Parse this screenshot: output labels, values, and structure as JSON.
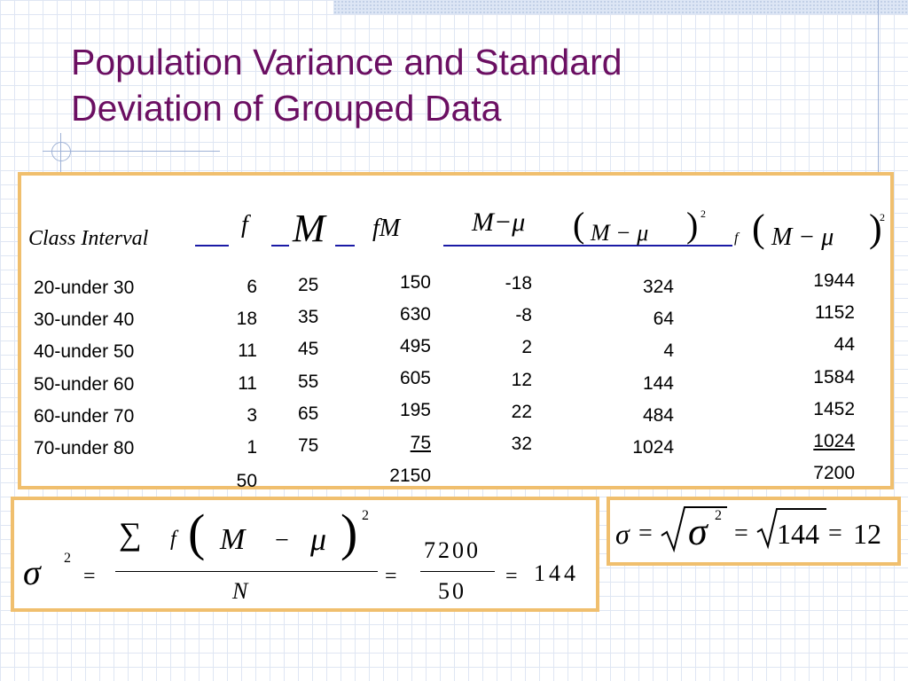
{
  "slide": {
    "title_line1": "Population Variance and Standard",
    "title_line2": "Deviation of Grouped Data"
  },
  "table": {
    "headers": {
      "class_interval": "Class  Interval",
      "f": "f",
      "M": "M",
      "fM": "fM",
      "M_minus_mu": "M−μ",
      "M_minus_mu_sq": "M  −  μ",
      "f_M_minus_mu_sq": "M  −  μ",
      "f_small": "f",
      "exp2": "2"
    },
    "class_intervals": [
      "20-under 30",
      "30-under 40",
      "40-under 50",
      "50-under 60",
      "60-under 70",
      "70-under 80"
    ],
    "f": [
      "6",
      "18",
      "11",
      "11",
      "3",
      "1"
    ],
    "f_total": "50",
    "M": [
      "25",
      "35",
      "45",
      "55",
      "65",
      "75"
    ],
    "fM": [
      "150",
      "630",
      "495",
      "605",
      "195",
      "75"
    ],
    "fM_total": "2150",
    "M_minus_mu": [
      "-18",
      "-8",
      "2",
      "12",
      "22",
      "32"
    ],
    "M_minus_mu_sq": [
      "324",
      "64",
      "4",
      "144",
      "484",
      "1024"
    ],
    "f_M_minus_mu_sq": [
      "1944",
      "1152",
      "44",
      "1584",
      "1452",
      "1024"
    ],
    "f_M_minus_mu_sq_total": "7200"
  },
  "variance_formula": {
    "sigma": "σ",
    "exp2": "2",
    "equals": "=",
    "sum": "∑",
    "f": "f",
    "M": "M",
    "minus": "−",
    "mu": "μ",
    "N": "N",
    "num": "7200",
    "den": "50",
    "result": "144"
  },
  "sd_formula": {
    "sigma": "σ",
    "equals": "=",
    "exp2": "2",
    "value": "144",
    "result": "12"
  },
  "colors": {
    "title": "#6b0f62",
    "box_border": "#f0bf6e",
    "header_underline": "#1a1aa6",
    "grid": "#dfe6f3"
  }
}
